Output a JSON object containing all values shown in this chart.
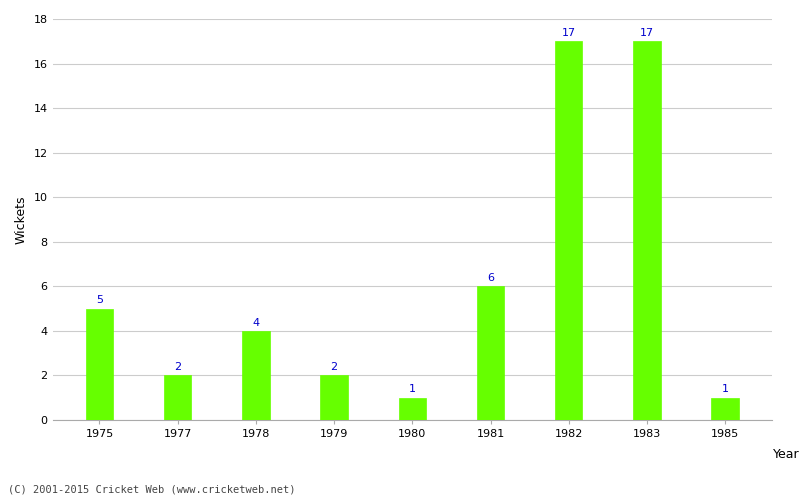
{
  "years": [
    "1975",
    "1977",
    "1978",
    "1979",
    "1980",
    "1981",
    "1982",
    "1983",
    "1985"
  ],
  "values": [
    5,
    2,
    4,
    2,
    1,
    6,
    17,
    17,
    1
  ],
  "bar_color": "#66ff00",
  "bar_edge_color": "#66ff00",
  "label_color": "#0000cc",
  "xlabel": "Year",
  "ylabel": "Wickets",
  "ylim": [
    0,
    18
  ],
  "yticks": [
    0,
    2,
    4,
    6,
    8,
    10,
    12,
    14,
    16,
    18
  ],
  "background_color": "#ffffff",
  "grid_color": "#cccccc",
  "footnote": "(C) 2001-2015 Cricket Web (www.cricketweb.net)",
  "label_fontsize": 8,
  "axis_label_fontsize": 9,
  "tick_fontsize": 8,
  "bar_width": 0.35
}
